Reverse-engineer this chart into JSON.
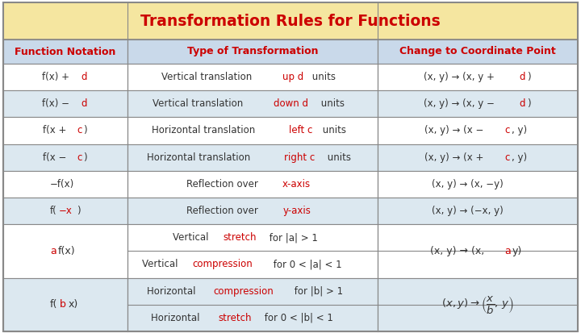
{
  "title": "Transformation Rules for Functions",
  "title_color": "#cc0000",
  "title_bg": "#f5e6a0",
  "header_bg": "#c9d9ea",
  "row_bg_blue": "#dce8f0",
  "row_bg_white": "#ffffff",
  "border_color": "#888888",
  "text_color": "#333333",
  "red_color": "#cc0000",
  "col_headers": [
    "Function Notation",
    "Type of Transformation",
    "Change to Coordinate Point"
  ],
  "figw": 7.2,
  "figh": 4.13,
  "dpi": 100
}
